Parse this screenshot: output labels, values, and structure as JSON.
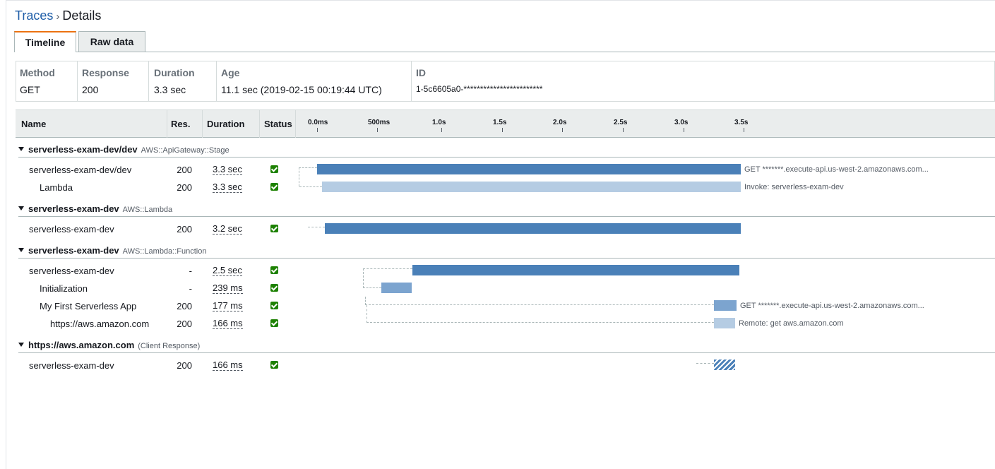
{
  "breadcrumb": {
    "parent": "Traces",
    "separator": "›",
    "current": "Details"
  },
  "tabs": [
    {
      "label": "Timeline",
      "active": true
    },
    {
      "label": "Raw data",
      "active": false
    }
  ],
  "summary": {
    "method": {
      "label": "Method",
      "value": "GET"
    },
    "response": {
      "label": "Response",
      "value": "200"
    },
    "duration": {
      "label": "Duration",
      "value": "3.3 sec"
    },
    "age": {
      "label": "Age",
      "value": "11.1 sec (2019-02-15 00:19:44 UTC)"
    },
    "id": {
      "label": "ID",
      "value": "1-5c6605a0-************************"
    }
  },
  "table": {
    "headers": {
      "name": "Name",
      "res": "Res.",
      "duration": "Duration",
      "status": "Status"
    },
    "ticks": [
      "0.0ms",
      "500ms",
      "1.0s",
      "1.5s",
      "2.0s",
      "2.5s",
      "3.0s",
      "3.5s"
    ]
  },
  "groups": [
    {
      "name": "serverless-exam-dev/dev",
      "type": "AWS::ApiGateway::Stage",
      "rows": [
        {
          "name": "serverless-exam-dev/dev",
          "res": "200",
          "duration": "3.3 sec",
          "status": "ok",
          "label": "GET *******.execute-api.us-west-2.amazonaws.com..."
        },
        {
          "name": "Lambda",
          "res": "200",
          "duration": "3.3 sec",
          "status": "ok",
          "label": "Invoke: serverless-exam-dev"
        }
      ]
    },
    {
      "name": "serverless-exam-dev",
      "type": "AWS::Lambda",
      "rows": [
        {
          "name": "serverless-exam-dev",
          "res": "200",
          "duration": "3.2 sec",
          "status": "ok",
          "label": ""
        }
      ]
    },
    {
      "name": "serverless-exam-dev",
      "type": "AWS::Lambda::Function",
      "rows": [
        {
          "name": "serverless-exam-dev",
          "res": "-",
          "duration": "2.5 sec",
          "status": "ok",
          "label": ""
        },
        {
          "name": "Initialization",
          "res": "-",
          "duration": "239 ms",
          "status": "ok",
          "label": ""
        },
        {
          "name": "My First Serverless App",
          "res": "200",
          "duration": "177 ms",
          "status": "ok",
          "label": "GET *******.execute-api.us-west-2.amazonaws.com..."
        },
        {
          "name": "https://aws.amazon.com",
          "res": "200",
          "duration": "166 ms",
          "status": "ok",
          "label": "Remote: get aws.amazon.com"
        }
      ]
    },
    {
      "name": "https://aws.amazon.com",
      "type": "(Client Response)",
      "rows": [
        {
          "name": "serverless-exam-dev",
          "res": "200",
          "duration": "166 ms",
          "status": "ok",
          "label": ""
        }
      ]
    }
  ],
  "colors": {
    "segment_dark": "#4a80b8",
    "segment_light": "#b5cce3",
    "segment_mid": "#7ca4cf",
    "status_ok": "#1d8102",
    "tab_accent": "#ec7211",
    "link": "#1f5ea8"
  }
}
